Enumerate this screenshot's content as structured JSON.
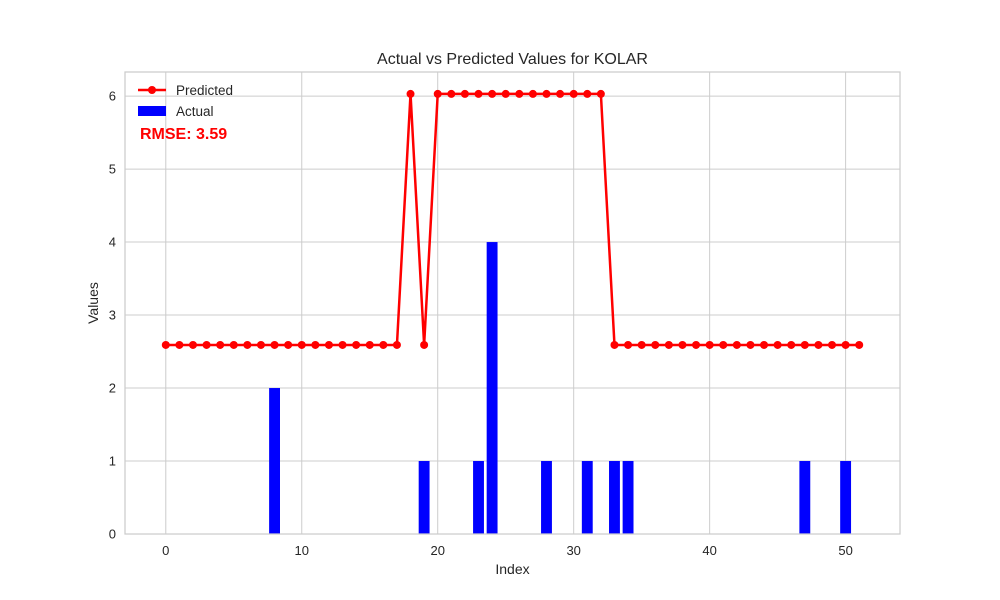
{
  "chart_data": {
    "type": "bar",
    "title": "Actual vs Predicted Values for KOLAR",
    "xlabel": "Index",
    "ylabel": "Values",
    "xlim": [
      -3,
      54
    ],
    "ylim": [
      0,
      6.33
    ],
    "grid": true,
    "legend_position": "top-left",
    "x_ticks": [
      0,
      10,
      20,
      30,
      40,
      50
    ],
    "y_ticks": [
      0,
      1,
      2,
      3,
      4,
      5,
      6
    ],
    "x": [
      0,
      1,
      2,
      3,
      4,
      5,
      6,
      7,
      8,
      9,
      10,
      11,
      12,
      13,
      14,
      15,
      16,
      17,
      18,
      19,
      20,
      21,
      22,
      23,
      24,
      25,
      26,
      27,
      28,
      29,
      30,
      31,
      32,
      33,
      34,
      35,
      36,
      37,
      38,
      39,
      40,
      41,
      42,
      43,
      44,
      45,
      46,
      47,
      48,
      49,
      50,
      51
    ],
    "series": [
      {
        "name": "Predicted",
        "kind": "line",
        "color": "#ff0000",
        "values": [
          2.59,
          2.59,
          2.59,
          2.59,
          2.59,
          2.59,
          2.59,
          2.59,
          2.59,
          2.59,
          2.59,
          2.59,
          2.59,
          2.59,
          2.59,
          2.59,
          2.59,
          2.59,
          6.03,
          2.59,
          6.03,
          6.03,
          6.03,
          6.03,
          6.03,
          6.03,
          6.03,
          6.03,
          6.03,
          6.03,
          6.03,
          6.03,
          6.03,
          2.59,
          2.59,
          2.59,
          2.59,
          2.59,
          2.59,
          2.59,
          2.59,
          2.59,
          2.59,
          2.59,
          2.59,
          2.59,
          2.59,
          2.59,
          2.59,
          2.59,
          2.59,
          2.59
        ]
      },
      {
        "name": "Actual",
        "kind": "bar",
        "color": "#0000ff",
        "values": [
          0,
          0,
          0,
          0,
          0,
          0,
          0,
          0,
          2,
          0,
          0,
          0,
          0,
          0,
          0,
          0,
          0,
          0,
          0,
          1,
          0,
          0,
          0,
          1,
          4,
          0,
          0,
          0,
          1,
          0,
          0,
          1,
          0,
          1,
          1,
          0,
          0,
          0,
          0,
          0,
          0,
          0,
          0,
          0,
          0,
          0,
          0,
          1,
          0,
          0,
          1,
          0
        ]
      }
    ],
    "annotation": {
      "text": "RMSE: 3.59",
      "color": "#ff0000"
    }
  }
}
